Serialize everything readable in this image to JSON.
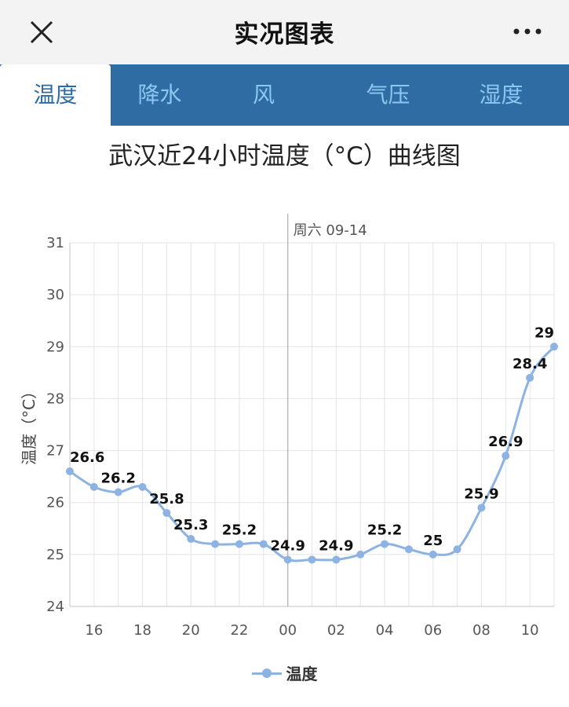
{
  "header": {
    "title": "实况图表",
    "close_icon": "close-icon",
    "more_icon": "more-icon"
  },
  "tabs": [
    {
      "label": "温度",
      "active": true
    },
    {
      "label": "降水",
      "active": false
    },
    {
      "label": "风",
      "active": false
    },
    {
      "label": "气压",
      "active": false
    },
    {
      "label": "湿度",
      "active": false
    }
  ],
  "colors": {
    "tab_bar": "#2e6ca3",
    "series": "#8db3e2"
  },
  "chart_data": {
    "type": "line",
    "title": "武汉近24小时温度（°C）曲线图",
    "ylabel": "温度（°C）",
    "xlabel": "",
    "ylim": [
      24,
      31
    ],
    "yticks": [
      24,
      25,
      26,
      27,
      28,
      29,
      30,
      31
    ],
    "x_hours": [
      15,
      16,
      17,
      18,
      19,
      20,
      21,
      22,
      23,
      0,
      1,
      2,
      3,
      4,
      5,
      6,
      7,
      8,
      9,
      10,
      11
    ],
    "xtick_labels": [
      "16",
      "18",
      "20",
      "22",
      "00",
      "02",
      "04",
      "06",
      "08",
      "10"
    ],
    "day_marker": {
      "at": "00",
      "label": "周六 09-14"
    },
    "grid": true,
    "legend": "bottom",
    "series": [
      {
        "name": "温度",
        "values": [
          26.6,
          26.3,
          26.2,
          26.3,
          25.8,
          25.3,
          25.2,
          25.2,
          25.2,
          24.9,
          24.9,
          24.9,
          25.0,
          25.2,
          25.1,
          25.0,
          25.1,
          25.9,
          26.9,
          28.4,
          29.0
        ],
        "labeled_points": [
          {
            "hour": 15,
            "label": "26.6"
          },
          {
            "hour": 17,
            "label": "26.2"
          },
          {
            "hour": 19,
            "label": "25.8"
          },
          {
            "hour": 20,
            "label": "25.3"
          },
          {
            "hour": 22,
            "label": "25.2"
          },
          {
            "hour": 0,
            "label": "24.9"
          },
          {
            "hour": 2,
            "label": "24.9"
          },
          {
            "hour": 4,
            "label": "25.2"
          },
          {
            "hour": 6,
            "label": "25"
          },
          {
            "hour": 8,
            "label": "25.9"
          },
          {
            "hour": 9,
            "label": "26.9"
          },
          {
            "hour": 10,
            "label": "28.4"
          },
          {
            "hour": 11,
            "label": "29"
          }
        ]
      }
    ]
  }
}
